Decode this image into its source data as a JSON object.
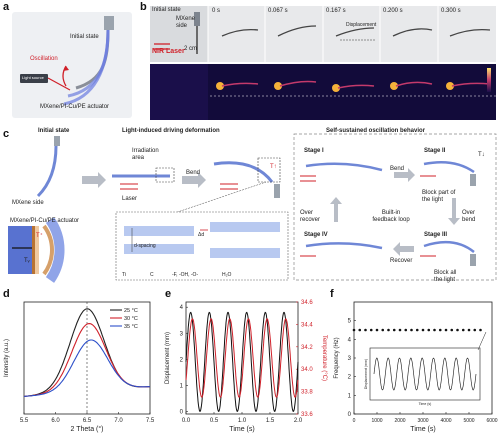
{
  "panels": {
    "a": "a",
    "b": "b",
    "c": "c",
    "d": "d",
    "e": "e",
    "f": "f"
  },
  "a": {
    "initial_state": "Initial state",
    "oscillation": "Oscillation",
    "light_source": "Light source",
    "actuator": "MXene/PI-Cu/PE actuator"
  },
  "b": {
    "initial_state": "Initial state",
    "mxene_side": "MXene side",
    "scale": "2 cm",
    "nir_laser": "NIR Laser",
    "times": [
      "0 s",
      "0.067 s",
      "0.167 s",
      "0.200 s",
      "0.300 s"
    ],
    "displacement": "Displacement"
  },
  "c": {
    "initial_state": "Initial state",
    "mxene_side": "MXene side",
    "irradiation_area": "Irradiation area",
    "laser": "Laser",
    "bend": "Bend",
    "light_driving": "Light-induced driving deformation",
    "self_sustained": "Self-sustained oscillation behavior",
    "actuator": "MXene/PI-Cu/PE actuator",
    "stage1": "Stage I",
    "stage2": "Stage II",
    "stage3": "Stage III",
    "stage4": "Stage IV",
    "bend2": "Bend",
    "over_bend": "Over bend",
    "over_recover": "Over recover",
    "recover": "Recover",
    "feedback": "Built-in feedback loop",
    "block_part": "Block part of the light",
    "block_all": "Block all the light",
    "d_spacing": "d-spacing",
    "delta_d": "Δd",
    "legend_ti": "Ti",
    "legend_c": "C",
    "legend_f": "-F, -OH, -O-",
    "legend_h2o": "H₂O",
    "t_up": "T↑",
    "t_down": "T↓",
    "tv": "Tᵥ",
    "t_plus": "T⁺"
  },
  "chart_data": [
    {
      "panel": "d",
      "type": "line",
      "xlabel": "2 Theta (°)",
      "ylabel": "Intensity (a.u.)",
      "xlim": [
        5.5,
        7.5
      ],
      "xticks": [
        5.5,
        6.0,
        6.5,
        7.0,
        7.5
      ],
      "series": [
        {
          "name": "25 °C",
          "color": "#222222",
          "peak": 6.5,
          "amplitude": 1.0
        },
        {
          "name": "30 °C",
          "color": "#d0212a",
          "peak": 6.53,
          "amplitude": 0.82
        },
        {
          "name": "35 °C",
          "color": "#2c4fc9",
          "peak": 6.56,
          "amplitude": 0.62
        }
      ]
    },
    {
      "panel": "e",
      "type": "line",
      "xlabel": "Time (s)",
      "ylabel": "Displacement (mm)",
      "y2label": "Temperature (°C)",
      "xlim": [
        0.0,
        2.0
      ],
      "xticks": [
        0.0,
        0.5,
        1.0,
        1.5,
        2.0
      ],
      "ylim": [
        -0.1,
        4.2
      ],
      "yticks": [
        0,
        1,
        2,
        3,
        4
      ],
      "y2lim": [
        33.6,
        34.6
      ],
      "y2ticks": [
        33.6,
        33.8,
        34.0,
        34.2,
        34.4,
        34.6
      ],
      "frequency_hz": 3.0,
      "series": [
        {
          "name": "Displacement",
          "color": "#111111",
          "min": 0.0,
          "max": 3.8
        },
        {
          "name": "Temperature",
          "color": "#d0212a",
          "min": 33.75,
          "max": 34.45
        }
      ]
    },
    {
      "panel": "f",
      "type": "scatter",
      "xlabel": "Time (s)",
      "ylabel": "Frequency (Hz)",
      "xlim": [
        0,
        6000
      ],
      "xticks": [
        0,
        1000,
        2000,
        3000,
        4000,
        5000,
        6000
      ],
      "ylim": [
        0,
        6
      ],
      "yticks": [
        0,
        1,
        2,
        3,
        4,
        5
      ],
      "points": [
        [
          0,
          4.5
        ],
        [
          250,
          4.5
        ],
        [
          500,
          4.5
        ],
        [
          750,
          4.5
        ],
        [
          1000,
          4.5
        ],
        [
          1250,
          4.5
        ],
        [
          1500,
          4.5
        ],
        [
          1750,
          4.5
        ],
        [
          2000,
          4.5
        ],
        [
          2250,
          4.5
        ],
        [
          2500,
          4.5
        ],
        [
          2750,
          4.5
        ],
        [
          3000,
          4.5
        ],
        [
          3250,
          4.5
        ],
        [
          3500,
          4.5
        ],
        [
          3750,
          4.5
        ],
        [
          4000,
          4.5
        ],
        [
          4250,
          4.5
        ],
        [
          4500,
          4.5
        ],
        [
          4750,
          4.5
        ],
        [
          5000,
          4.5
        ],
        [
          5250,
          4.5
        ],
        [
          5500,
          4.5
        ]
      ],
      "inset": {
        "ylabel": "Displacement (mm)",
        "xlabel": "Time (s)"
      }
    }
  ]
}
